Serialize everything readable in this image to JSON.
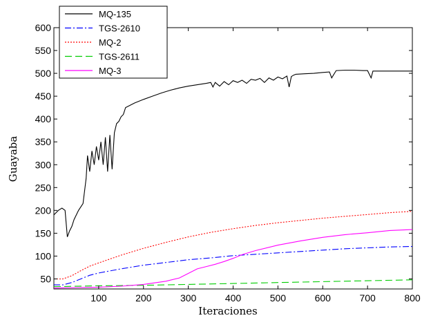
{
  "chart_data": {
    "type": "line",
    "title": "",
    "xlabel": "Iteraciones",
    "ylabel": "Guayaba",
    "xlim": [
      0,
      800
    ],
    "ylim": [
      28,
      600
    ],
    "xticks": [
      100,
      200,
      300,
      400,
      500,
      600,
      700,
      800
    ],
    "yticks": [
      50,
      100,
      150,
      200,
      250,
      300,
      350,
      400,
      450,
      500,
      550,
      600
    ],
    "grid": false,
    "legend_position": "top-left",
    "series": [
      {
        "name": "MQ-135",
        "color": "#000000",
        "style": "solid",
        "x": [
          0,
          5,
          10,
          18,
          25,
          30,
          35,
          40,
          45,
          55,
          65,
          72,
          75,
          80,
          85,
          90,
          95,
          100,
          105,
          110,
          115,
          120,
          125,
          130,
          135,
          140,
          145,
          150,
          155,
          160,
          180,
          200,
          220,
          240,
          260,
          280,
          300,
          320,
          340,
          350,
          355,
          360,
          370,
          380,
          390,
          400,
          410,
          420,
          430,
          440,
          450,
          460,
          470,
          480,
          490,
          500,
          510,
          520,
          525,
          530,
          535,
          540,
          560,
          580,
          600,
          615,
          620,
          630,
          650,
          670,
          690,
          700,
          708,
          712,
          720,
          740,
          760,
          780,
          800
        ],
        "y": [
          190,
          195,
          200,
          205,
          200,
          142,
          155,
          165,
          180,
          200,
          215,
          270,
          320,
          285,
          330,
          300,
          340,
          310,
          350,
          300,
          360,
          285,
          365,
          290,
          370,
          390,
          395,
          405,
          410,
          425,
          435,
          443,
          450,
          457,
          463,
          468,
          472,
          475,
          478,
          480,
          470,
          480,
          472,
          482,
          475,
          484,
          480,
          485,
          478,
          487,
          485,
          489,
          480,
          490,
          485,
          492,
          488,
          494,
          470,
          493,
          496,
          498,
          499,
          500,
          502,
          503,
          490,
          506,
          507,
          507,
          506,
          506,
          490,
          505,
          505,
          505,
          505,
          505,
          505
        ]
      },
      {
        "name": "TGS-2610",
        "color": "#0000ff",
        "style": "dashdot",
        "x": [
          0,
          20,
          40,
          60,
          80,
          100,
          150,
          200,
          250,
          300,
          350,
          400,
          450,
          500,
          550,
          600,
          650,
          700,
          750,
          800
        ],
        "y": [
          37,
          37,
          42,
          50,
          58,
          63,
          72,
          80,
          86,
          92,
          96,
          101,
          104,
          107,
          110,
          113,
          116,
          118,
          120,
          121
        ]
      },
      {
        "name": "MQ-2",
        "color": "#ff0000",
        "style": "dotted",
        "x": [
          0,
          20,
          40,
          60,
          80,
          100,
          150,
          200,
          250,
          300,
          350,
          400,
          450,
          500,
          550,
          600,
          650,
          700,
          750,
          800
        ],
        "y": [
          50,
          50,
          57,
          68,
          78,
          85,
          102,
          117,
          130,
          142,
          152,
          160,
          167,
          173,
          178,
          183,
          187,
          191,
          195,
          198
        ]
      },
      {
        "name": "TGS-2611",
        "color": "#00cc00",
        "style": "dashed",
        "x": [
          0,
          100,
          200,
          300,
          400,
          500,
          600,
          700,
          800
        ],
        "y": [
          33,
          35,
          36,
          38,
          40,
          42,
          44,
          46,
          48
        ]
      },
      {
        "name": "MQ-3",
        "color": "#ff00ff",
        "style": "solid",
        "x": [
          0,
          50,
          100,
          150,
          200,
          250,
          280,
          300,
          320,
          340,
          360,
          380,
          400,
          420,
          450,
          500,
          550,
          600,
          650,
          700,
          750,
          800
        ],
        "y": [
          30,
          31,
          32,
          34,
          38,
          45,
          52,
          62,
          72,
          77,
          82,
          88,
          95,
          103,
          112,
          124,
          133,
          141,
          147,
          151,
          156,
          158
        ]
      }
    ]
  }
}
